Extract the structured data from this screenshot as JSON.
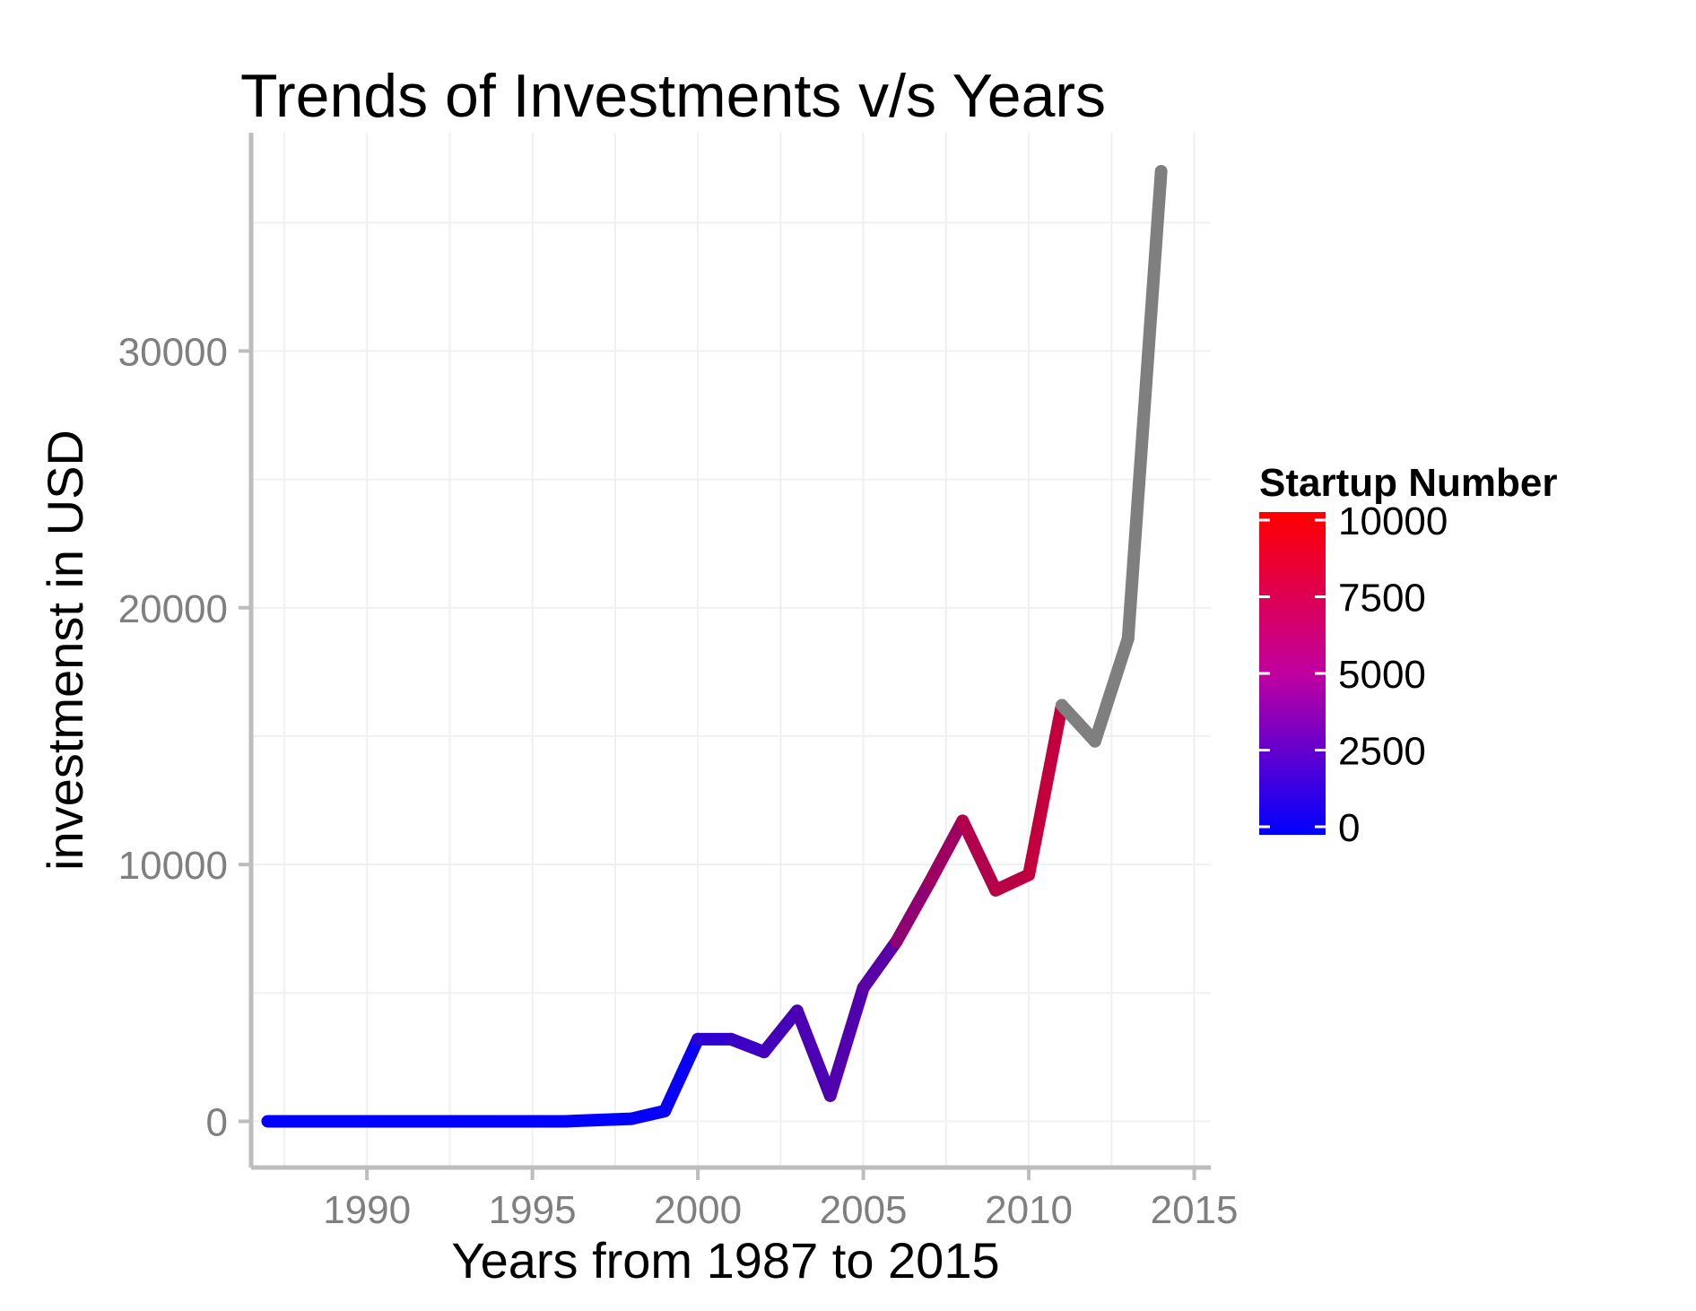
{
  "chart_data": {
    "type": "line",
    "title": "Trends of Investments v/s Years",
    "xlabel": "Years from 1987 to 2015",
    "ylabel": "investmenst in USD",
    "xlim": [
      1986.5,
      2015.5
    ],
    "ylim": [
      -1800,
      38500
    ],
    "x_ticks": [
      1990,
      1995,
      2000,
      2005,
      2010,
      2015
    ],
    "x_tick_labels": [
      "1990",
      "1995",
      "2000",
      "2005",
      "2010",
      "2015"
    ],
    "y_ticks": [
      0,
      10000,
      20000,
      30000
    ],
    "y_tick_labels": [
      "0",
      "10000",
      "20000",
      "30000"
    ],
    "y_minor_gridlines": [
      5000,
      15000,
      25000,
      35000
    ],
    "grid": true,
    "legend": {
      "title": "Startup Number",
      "type": "colorbar",
      "position": "right",
      "range": [
        0,
        10000
      ],
      "ticks": [
        0,
        2500,
        5000,
        7500,
        10000
      ],
      "tick_labels": [
        "0",
        "2500",
        "5000",
        "7500",
        "10000"
      ],
      "low_color": "#0000ff",
      "high_color": "#ff0000",
      "na_color": "#7f7f7f"
    },
    "series": [
      {
        "x": [
          1987,
          1988,
          1989,
          1990,
          1991,
          1992,
          1993,
          1994,
          1995,
          1996,
          1997,
          1998,
          1999,
          2000,
          2001,
          2002,
          2003,
          2004,
          2005,
          2006,
          2007,
          2008,
          2009,
          2010,
          2011,
          2012,
          2013,
          2014
        ],
        "y": [
          0,
          0,
          0,
          0,
          0,
          0,
          0,
          0,
          0,
          0,
          50,
          100,
          400,
          3200,
          3200,
          2700,
          4300,
          1000,
          5200,
          7000,
          9300,
          11700,
          9000,
          9600,
          16200,
          14800,
          18800,
          37000
        ],
        "color_values": [
          1,
          2,
          3,
          5,
          8,
          10,
          15,
          20,
          30,
          50,
          100,
          200,
          400,
          1800,
          2300,
          2700,
          3000,
          3200,
          3500,
          5600,
          6200,
          7000,
          7300,
          7600,
          null,
          null,
          null,
          null
        ]
      }
    ]
  }
}
